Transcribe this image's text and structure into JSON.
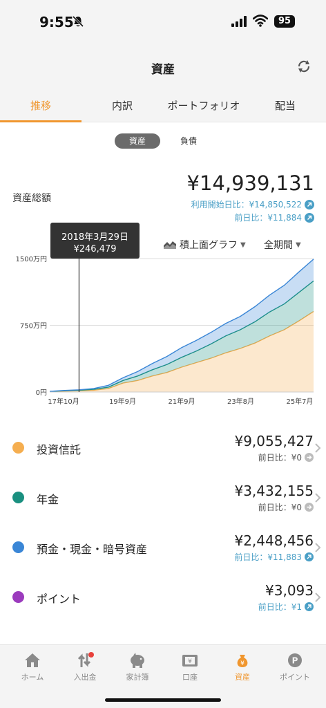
{
  "status": {
    "time": "9:55",
    "battery": "95"
  },
  "header": {
    "title": "資産"
  },
  "tabs": [
    "推移",
    "内訳",
    "ポートフォリオ",
    "配当"
  ],
  "segments": {
    "assets": "資産",
    "liabilities": "負債"
  },
  "summary": {
    "label": "資産総額",
    "total": "¥14,939,131",
    "since_start": "利用開始日比：¥14,850,522",
    "prev_day": "前日比：¥11,884"
  },
  "tooltip": {
    "date": "2018年3月29日",
    "value": "¥246,479"
  },
  "controls": {
    "graph_type": "積上面グラフ",
    "period": "全期間"
  },
  "chart_data": {
    "type": "area",
    "stacked": true,
    "y_ticks": [
      "1500万円",
      "750万円",
      "0円"
    ],
    "x_ticks": [
      "17年10月",
      "19年9月",
      "21年9月",
      "23年8月",
      "25年7月"
    ],
    "ylim": [
      0,
      15000000
    ],
    "x": [
      "2017-06",
      "2017-10",
      "2018-03",
      "2018-09",
      "2019-03",
      "2019-09",
      "2020-03",
      "2020-09",
      "2021-03",
      "2021-09",
      "2022-03",
      "2022-09",
      "2023-03",
      "2023-08",
      "2024-02",
      "2024-08",
      "2025-02",
      "2025-07",
      "2025-09"
    ],
    "series": [
      {
        "name": "投資信託",
        "color": "#f5ae50",
        "values": [
          50000,
          100000,
          150000,
          200000,
          400000,
          1000000,
          1300000,
          1800000,
          2200000,
          2800000,
          3300000,
          3800000,
          4400000,
          4900000,
          5500000,
          6300000,
          7000000,
          8000000,
          9055427
        ]
      },
      {
        "name": "年金",
        "color": "#1a9080",
        "values": [
          10000,
          40000,
          50000,
          100000,
          150000,
          300000,
          500000,
          700000,
          900000,
          1100000,
          1300000,
          1600000,
          1900000,
          2100000,
          2400000,
          2700000,
          2900000,
          3200000,
          3432155
        ]
      },
      {
        "name": "預金・現金・暗号資産",
        "color": "#3a86d6",
        "values": [
          20000,
          40000,
          46479,
          100000,
          200000,
          300000,
          500000,
          700000,
          900000,
          1100000,
          1200000,
          1300000,
          1400000,
          1500000,
          1700000,
          1900000,
          2100000,
          2300000,
          2448456
        ]
      }
    ],
    "cursor_index": 2
  },
  "assets": [
    {
      "name": "投資信託",
      "color": "#f5ae50",
      "value": "¥9,055,427",
      "change": "前日比：¥0",
      "change_color": "#555555",
      "badge": "gray"
    },
    {
      "name": "年金",
      "color": "#1a9080",
      "value": "¥3,432,155",
      "change": "前日比：¥0",
      "change_color": "#555555",
      "badge": "gray"
    },
    {
      "name": "預金・現金・暗号資産",
      "color": "#3a86d6",
      "value": "¥2,448,456",
      "change": "前日比：¥11,883",
      "change_color": "#4a9fc6",
      "badge": "blue"
    },
    {
      "name": "ポイント",
      "color": "#9b3bbd",
      "value": "¥3,093",
      "change": "前日比：¥1",
      "change_color": "#4a9fc6",
      "badge": "blue"
    }
  ],
  "nav": [
    {
      "label": "ホーム",
      "icon": "home-icon"
    },
    {
      "label": "入出金",
      "icon": "transfer-icon"
    },
    {
      "label": "家計簿",
      "icon": "piggy-bank-icon"
    },
    {
      "label": "口座",
      "icon": "wallet-icon"
    },
    {
      "label": "資産",
      "icon": "money-bag-icon"
    },
    {
      "label": "ポイント",
      "icon": "point-icon"
    }
  ]
}
